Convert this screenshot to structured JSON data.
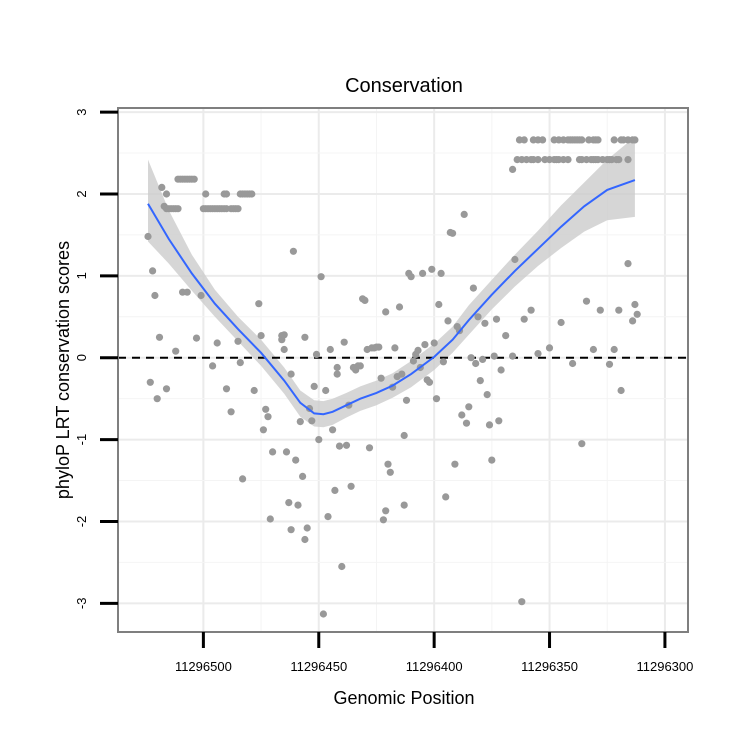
{
  "chart_data": {
    "type": "scatter",
    "title": "Conservation",
    "xlabel": "Genomic Position",
    "ylabel": "phyloP LRT conservation scores",
    "x_reversed": true,
    "xlim": [
      11296537,
      11296290
    ],
    "ylim": [
      -3.35,
      3.05
    ],
    "x_ticks": [
      11296500,
      11296450,
      11296400,
      11296350,
      11296300
    ],
    "y_ticks": [
      -3,
      -2,
      -1,
      0,
      1,
      2,
      3
    ],
    "reference_line": {
      "y": 0,
      "style": "dashed"
    },
    "colors": {
      "points": "#999999",
      "smooth": "#3366ff",
      "band": "#cccccc",
      "grid": "#ebebeb",
      "border": "#7f7f7f"
    },
    "grid": true,
    "legend": "none",
    "points": [
      [
        11296524,
        1.48
      ],
      [
        11296522,
        1.06
      ],
      [
        11296521,
        0.76
      ],
      [
        11296519,
        0.25
      ],
      [
        11296518,
        2.08
      ],
      [
        11296517,
        1.85
      ],
      [
        11296516,
        2.0
      ],
      [
        11296516,
        1.82
      ],
      [
        11296515,
        1.82
      ],
      [
        11296514,
        1.82
      ],
      [
        11296513,
        1.82
      ],
      [
        11296512,
        1.82
      ],
      [
        11296511,
        1.82
      ],
      [
        11296511,
        2.18
      ],
      [
        11296510,
        2.18
      ],
      [
        11296509,
        2.18
      ],
      [
        11296508,
        2.18
      ],
      [
        11296507,
        2.18
      ],
      [
        11296506,
        2.18
      ],
      [
        11296505,
        2.18
      ],
      [
        11296504,
        2.18
      ],
      [
        11296500,
        1.82
      ],
      [
        11296499,
        1.82
      ],
      [
        11296498,
        1.82
      ],
      [
        11296497,
        1.82
      ],
      [
        11296496,
        1.82
      ],
      [
        11296495,
        1.82
      ],
      [
        11296494,
        1.82
      ],
      [
        11296493,
        1.82
      ],
      [
        11296492,
        1.82
      ],
      [
        11296491,
        1.82
      ],
      [
        11296490,
        1.82
      ],
      [
        11296488,
        1.82
      ],
      [
        11296487,
        1.82
      ],
      [
        11296486,
        1.82
      ],
      [
        11296485,
        1.82
      ],
      [
        11296499,
        2.0
      ],
      [
        11296491,
        2.0
      ],
      [
        11296490,
        2.0
      ],
      [
        11296484,
        2.0
      ],
      [
        11296483,
        2.0
      ],
      [
        11296482,
        2.0
      ],
      [
        11296481,
        2.0
      ],
      [
        11296480,
        2.0
      ],
      [
        11296479,
        2.0
      ],
      [
        11296523,
        -0.3
      ],
      [
        11296520,
        -0.5
      ],
      [
        11296516,
        -0.38
      ],
      [
        11296512,
        0.08
      ],
      [
        11296509,
        0.8
      ],
      [
        11296507,
        0.8
      ],
      [
        11296503,
        0.24
      ],
      [
        11296501,
        0.76
      ],
      [
        11296496,
        -0.1
      ],
      [
        11296494,
        0.18
      ],
      [
        11296490,
        -0.38
      ],
      [
        11296488,
        -0.66
      ],
      [
        11296485,
        0.2
      ],
      [
        11296484,
        -0.06
      ],
      [
        11296483,
        -1.48
      ],
      [
        11296478,
        -0.4
      ],
      [
        11296476,
        0.66
      ],
      [
        11296475,
        0.27
      ],
      [
        11296474,
        -0.88
      ],
      [
        11296473,
        -0.63
      ],
      [
        11296472,
        -0.72
      ],
      [
        11296471,
        -1.97
      ],
      [
        11296470,
        -1.15
      ],
      [
        11296466,
        0.22
      ],
      [
        11296466,
        0.27
      ],
      [
        11296465,
        0.28
      ],
      [
        11296465,
        0.1
      ],
      [
        11296464,
        -1.15
      ],
      [
        11296463,
        -1.77
      ],
      [
        11296462,
        -2.1
      ],
      [
        11296462,
        -0.2
      ],
      [
        11296461,
        1.3
      ],
      [
        11296460,
        -1.25
      ],
      [
        11296459,
        -1.8
      ],
      [
        11296458,
        -0.78
      ],
      [
        11296457,
        -1.45
      ],
      [
        11296456,
        0.25
      ],
      [
        11296456,
        -2.22
      ],
      [
        11296455,
        -2.08
      ],
      [
        11296454,
        -0.62
      ],
      [
        11296453,
        -0.77
      ],
      [
        11296452,
        -0.35
      ],
      [
        11296451,
        0.04
      ],
      [
        11296450,
        -1.0
      ],
      [
        11296449,
        0.99
      ],
      [
        11296448,
        -3.13
      ],
      [
        11296447,
        -0.4
      ],
      [
        11296446,
        -1.94
      ],
      [
        11296445,
        0.1
      ],
      [
        11296444,
        -0.88
      ],
      [
        11296443,
        -1.62
      ],
      [
        11296442,
        -0.2
      ],
      [
        11296442,
        -0.12
      ],
      [
        11296441,
        -1.08
      ],
      [
        11296440,
        -2.55
      ],
      [
        11296439,
        0.19
      ],
      [
        11296438,
        -1.07
      ],
      [
        11296437,
        -0.58
      ],
      [
        11296436,
        -1.57
      ],
      [
        11296435,
        -0.12
      ],
      [
        11296434,
        -0.15
      ],
      [
        11296433,
        -0.1
      ],
      [
        11296432,
        -0.1
      ],
      [
        11296431,
        0.72
      ],
      [
        11296430,
        0.7
      ],
      [
        11296429,
        0.1
      ],
      [
        11296428,
        -1.1
      ],
      [
        11296427,
        0.12
      ],
      [
        11296426,
        0.12
      ],
      [
        11296425,
        0.13
      ],
      [
        11296424,
        0.13
      ],
      [
        11296423,
        -0.25
      ],
      [
        11296422,
        -1.98
      ],
      [
        11296421,
        -1.87
      ],
      [
        11296421,
        0.56
      ],
      [
        11296420,
        -1.3
      ],
      [
        11296419,
        -1.4
      ],
      [
        11296418,
        -0.36
      ],
      [
        11296417,
        0.12
      ],
      [
        11296416,
        -0.23
      ],
      [
        11296415,
        0.62
      ],
      [
        11296414,
        -0.2
      ],
      [
        11296413,
        -0.95
      ],
      [
        11296413,
        -1.8
      ],
      [
        11296412,
        -0.52
      ],
      [
        11296411,
        1.03
      ],
      [
        11296410,
        0.99
      ],
      [
        11296409,
        -0.04
      ],
      [
        11296408,
        0.04
      ],
      [
        11296407,
        0.09
      ],
      [
        11296406,
        -0.12
      ],
      [
        11296405,
        1.03
      ],
      [
        11296404,
        0.16
      ],
      [
        11296403,
        -0.27
      ],
      [
        11296402,
        -0.3
      ],
      [
        11296401,
        1.08
      ],
      [
        11296400,
        0.18
      ],
      [
        11296399,
        -0.5
      ],
      [
        11296398,
        0.65
      ],
      [
        11296397,
        1.03
      ],
      [
        11296396,
        -0.05
      ],
      [
        11296395,
        -1.7
      ],
      [
        11296394,
        0.45
      ],
      [
        11296393,
        1.53
      ],
      [
        11296392,
        1.52
      ],
      [
        11296391,
        -1.3
      ],
      [
        11296390,
        0.38
      ],
      [
        11296389,
        0.33
      ],
      [
        11296388,
        -0.7
      ],
      [
        11296387,
        1.75
      ],
      [
        11296386,
        -0.8
      ],
      [
        11296385,
        -0.6
      ],
      [
        11296384,
        0.0
      ],
      [
        11296383,
        0.85
      ],
      [
        11296382,
        -0.07
      ],
      [
        11296381,
        0.5
      ],
      [
        11296380,
        -0.28
      ],
      [
        11296379,
        -0.02
      ],
      [
        11296378,
        0.42
      ],
      [
        11296377,
        -0.45
      ],
      [
        11296376,
        -0.82
      ],
      [
        11296375,
        -1.25
      ],
      [
        11296374,
        0.02
      ],
      [
        11296373,
        0.47
      ],
      [
        11296372,
        -0.77
      ],
      [
        11296371,
        -0.15
      ],
      [
        11296369,
        0.27
      ],
      [
        11296362,
        -2.98
      ],
      [
        11296366,
        2.3
      ],
      [
        11296365,
        1.2
      ],
      [
        11296366,
        0.02
      ],
      [
        11296361,
        0.47
      ],
      [
        11296358,
        0.58
      ],
      [
        11296355,
        0.05
      ],
      [
        11296350,
        0.12
      ],
      [
        11296345,
        0.43
      ],
      [
        11296340,
        -0.07
      ],
      [
        11296336,
        -1.05
      ],
      [
        11296334,
        0.69
      ],
      [
        11296331,
        0.1
      ],
      [
        11296328,
        0.58
      ],
      [
        11296324,
        -0.08
      ],
      [
        11296322,
        0.1
      ],
      [
        11296320,
        0.58
      ],
      [
        11296319,
        -0.4
      ],
      [
        11296316,
        1.15
      ],
      [
        11296314,
        0.45
      ],
      [
        11296313,
        0.65
      ],
      [
        11296312,
        0.53
      ],
      [
        11296364,
        2.42
      ],
      [
        11296362,
        2.42
      ],
      [
        11296360,
        2.42
      ],
      [
        11296358,
        2.42
      ],
      [
        11296357,
        2.42
      ],
      [
        11296355,
        2.42
      ],
      [
        11296352,
        2.42
      ],
      [
        11296350,
        2.42
      ],
      [
        11296348,
        2.42
      ],
      [
        11296347,
        2.42
      ],
      [
        11296346,
        2.42
      ],
      [
        11296344,
        2.42
      ],
      [
        11296342,
        2.42
      ],
      [
        11296337,
        2.42
      ],
      [
        11296336,
        2.42
      ],
      [
        11296334,
        2.42
      ],
      [
        11296332,
        2.42
      ],
      [
        11296331,
        2.42
      ],
      [
        11296330,
        2.42
      ],
      [
        11296329,
        2.42
      ],
      [
        11296327,
        2.42
      ],
      [
        11296325,
        2.42
      ],
      [
        11296324,
        2.42
      ],
      [
        11296323,
        2.42
      ],
      [
        11296321,
        2.42
      ],
      [
        11296320,
        2.42
      ],
      [
        11296316,
        2.42
      ],
      [
        11296363,
        2.66
      ],
      [
        11296361,
        2.66
      ],
      [
        11296357,
        2.66
      ],
      [
        11296355,
        2.66
      ],
      [
        11296353,
        2.66
      ],
      [
        11296348,
        2.66
      ],
      [
        11296346,
        2.66
      ],
      [
        11296344,
        2.66
      ],
      [
        11296342,
        2.66
      ],
      [
        11296341,
        2.66
      ],
      [
        11296340,
        2.66
      ],
      [
        11296339,
        2.66
      ],
      [
        11296338,
        2.66
      ],
      [
        11296337,
        2.66
      ],
      [
        11296336,
        2.66
      ],
      [
        11296333,
        2.66
      ],
      [
        11296331,
        2.66
      ],
      [
        11296330,
        2.66
      ],
      [
        11296329,
        2.66
      ],
      [
        11296322,
        2.66
      ],
      [
        11296319,
        2.66
      ],
      [
        11296318,
        2.66
      ],
      [
        11296316,
        2.66
      ],
      [
        11296314,
        2.66
      ],
      [
        11296313,
        2.66
      ]
    ],
    "smooth": {
      "x": [
        11296524,
        11296515,
        11296505,
        11296495,
        11296485,
        11296475,
        11296465,
        11296458,
        11296452,
        11296448,
        11296444,
        11296438,
        11296432,
        11296425,
        11296418,
        11296410,
        11296400,
        11296392,
        11296385,
        11296375,
        11296365,
        11296355,
        11296345,
        11296335,
        11296325,
        11296313
      ],
      "y": [
        1.88,
        1.45,
        1.03,
        0.66,
        0.35,
        0.06,
        -0.28,
        -0.55,
        -0.68,
        -0.69,
        -0.66,
        -0.58,
        -0.5,
        -0.43,
        -0.34,
        -0.2,
        0.01,
        0.22,
        0.46,
        0.77,
        1.06,
        1.33,
        1.6,
        1.85,
        2.05,
        2.17
      ],
      "lo": [
        1.42,
        1.15,
        0.82,
        0.5,
        0.2,
        -0.1,
        -0.44,
        -0.72,
        -0.84,
        -0.85,
        -0.82,
        -0.73,
        -0.65,
        -0.58,
        -0.49,
        -0.36,
        -0.15,
        0.06,
        0.28,
        0.59,
        0.87,
        1.12,
        1.34,
        1.54,
        1.68,
        1.72
      ],
      "hi": [
        2.42,
        1.8,
        1.26,
        0.83,
        0.5,
        0.22,
        -0.12,
        -0.4,
        -0.52,
        -0.53,
        -0.5,
        -0.43,
        -0.35,
        -0.28,
        -0.19,
        -0.04,
        0.17,
        0.38,
        0.64,
        0.95,
        1.26,
        1.55,
        1.86,
        2.14,
        2.42,
        2.7
      ]
    }
  }
}
